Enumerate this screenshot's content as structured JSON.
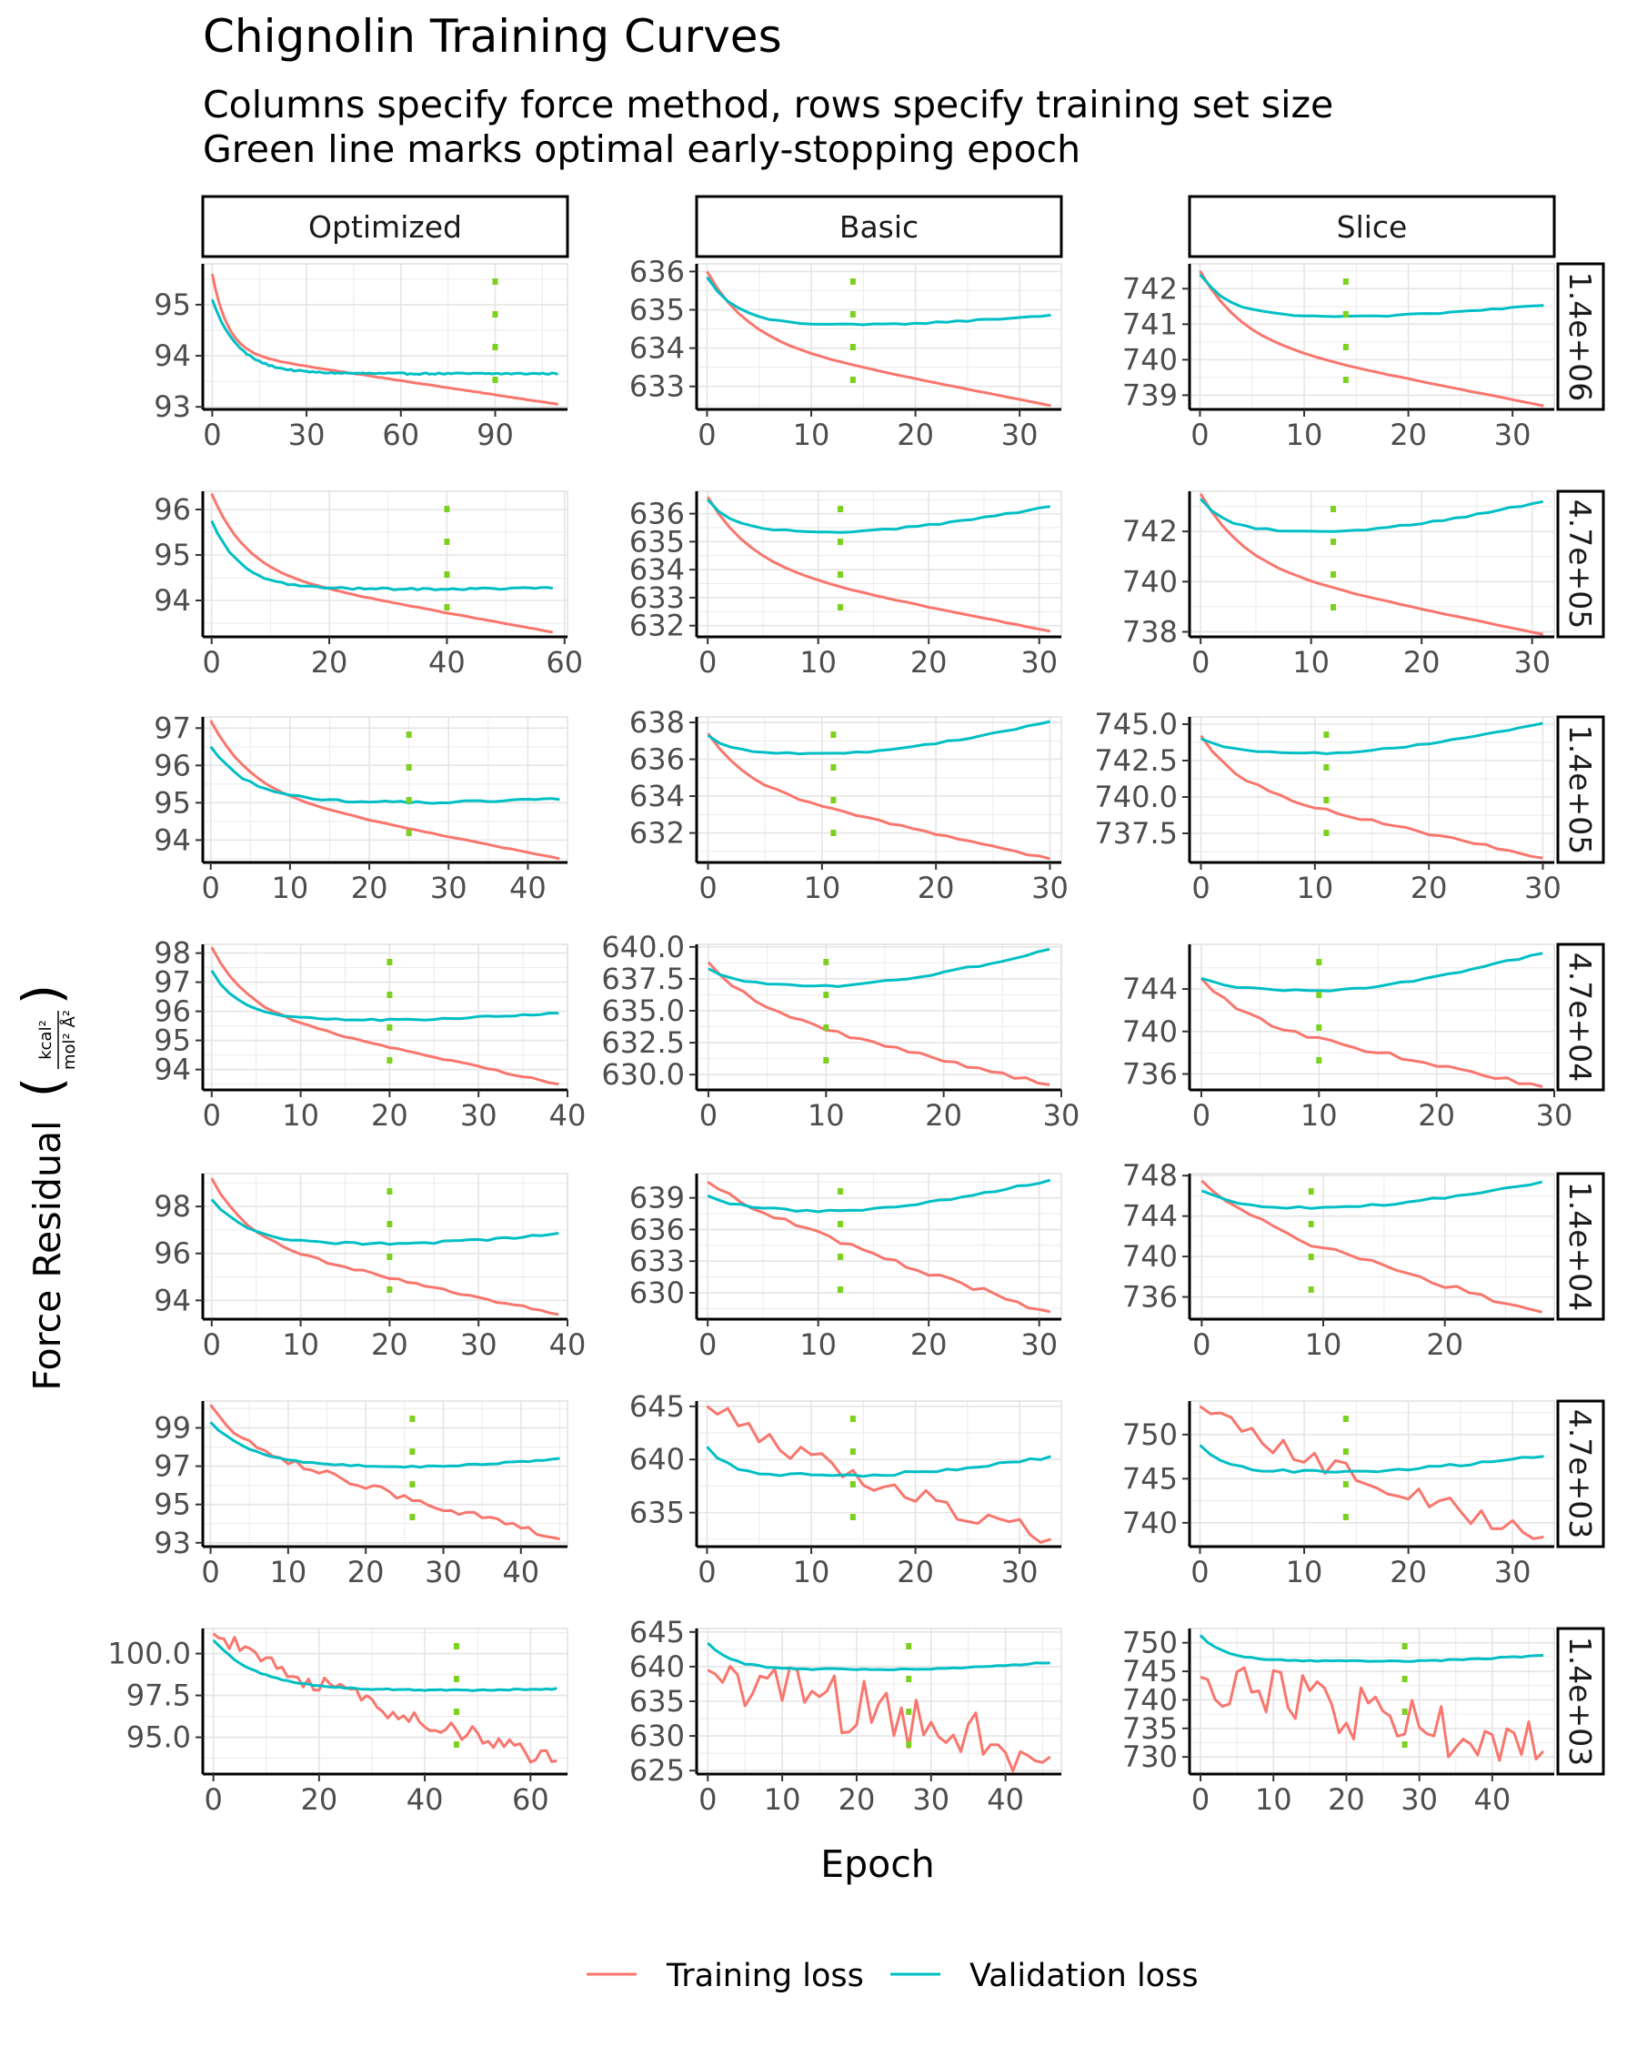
{
  "chart_data": {
    "type": "line",
    "title": "Chignolin Training Curves",
    "subtitle": [
      "Columns specify force method, rows specify training set size",
      "Green line marks optimal early-stopping epoch"
    ],
    "xlabel": "Epoch",
    "ylabel": "Force Residual",
    "ylabel_unit": "kcal²/(mol² Å²)",
    "columns": [
      "Optimized",
      "Basic",
      "Slice"
    ],
    "rows": [
      "1.4e+06",
      "4.7e+05",
      "1.4e+05",
      "4.7e+04",
      "1.4e+04",
      "4.7e+03",
      "1.4e+03"
    ],
    "legend": {
      "position": "bottom",
      "entries": [
        "Training loss",
        "Validation loss"
      ]
    },
    "colors": {
      "training": "#F8766D",
      "validation": "#00BFC4",
      "early_stop": "#7CD11F",
      "grid": "#E5E5E5"
    },
    "panels": [
      {
        "row": "1.4e+06",
        "col": "Optimized",
        "n_epochs": 110,
        "early_stop": 90,
        "xlim": [
          -3,
          113
        ],
        "ylim": [
          92.95,
          95.8
        ],
        "xticks": [
          0,
          30,
          60,
          90
        ],
        "yticks": [
          93,
          94,
          95
        ],
        "train": {
          "start": 95.6,
          "end": 93.05,
          "k": 0.2,
          "noise": 0.004,
          "knee": 0.6
        },
        "val": {
          "start": 95.1,
          "end": 93.65,
          "k": 0.12,
          "rise": 0,
          "noise": 0.015
        }
      },
      {
        "row": "1.4e+06",
        "col": "Basic",
        "n_epochs": 33,
        "early_stop": 14,
        "xlim": [
          -1,
          34
        ],
        "ylim": [
          632.4,
          636.2
        ],
        "xticks": [
          0,
          10,
          20,
          30
        ],
        "yticks": [
          633,
          634,
          635,
          636
        ],
        "train": {
          "start": 636.0,
          "end": 632.5,
          "k": 0.25,
          "noise": 0.005,
          "knee": 0.5
        },
        "val": {
          "start": 635.85,
          "end": 634.6,
          "k": 0.35,
          "rise": 0.26,
          "noise": 0.02
        }
      },
      {
        "row": "1.4e+06",
        "col": "Slice",
        "n_epochs": 33,
        "early_stop": 14,
        "xlim": [
          -1,
          34
        ],
        "ylim": [
          738.6,
          742.7
        ],
        "xticks": [
          0,
          10,
          20,
          30
        ],
        "yticks": [
          739,
          740,
          741,
          742
        ],
        "train": {
          "start": 742.5,
          "end": 738.7,
          "k": 0.25,
          "noise": 0.005,
          "knee": 0.5
        },
        "val": {
          "start": 742.4,
          "end": 741.2,
          "k": 0.35,
          "rise": 0.35,
          "noise": 0.02
        }
      },
      {
        "row": "4.7e+05",
        "col": "Optimized",
        "n_epochs": 58,
        "early_stop": 40,
        "xlim": [
          -1.5,
          60.5
        ],
        "ylim": [
          93.2,
          96.4
        ],
        "xticks": [
          0,
          20,
          40,
          60
        ],
        "yticks": [
          94,
          95,
          96
        ],
        "train": {
          "start": 96.35,
          "end": 93.3,
          "k": 0.17,
          "noise": 0.005,
          "knee": 0.55
        },
        "val": {
          "start": 95.75,
          "end": 94.25,
          "k": 0.2,
          "rise": 0.03,
          "noise": 0.02
        }
      },
      {
        "row": "4.7e+05",
        "col": "Basic",
        "n_epochs": 31,
        "early_stop": 12,
        "xlim": [
          -1,
          32
        ],
        "ylim": [
          631.6,
          636.8
        ],
        "xticks": [
          0,
          10,
          20,
          30
        ],
        "yticks": [
          632,
          633,
          634,
          635,
          636
        ],
        "train": {
          "start": 636.6,
          "end": 631.8,
          "k": 0.25,
          "noise": 0.01,
          "knee": 0.5
        },
        "val": {
          "start": 636.5,
          "end": 635.35,
          "k": 0.45,
          "rise": 0.9,
          "noise": 0.03
        }
      },
      {
        "row": "4.7e+05",
        "col": "Slice",
        "n_epochs": 31,
        "early_stop": 12,
        "xlim": [
          -1,
          32
        ],
        "ylim": [
          737.8,
          743.6
        ],
        "xticks": [
          0,
          10,
          20,
          30
        ],
        "yticks": [
          738,
          740,
          742
        ],
        "train": {
          "start": 743.5,
          "end": 737.9,
          "k": 0.25,
          "noise": 0.01,
          "knee": 0.5
        },
        "val": {
          "start": 743.3,
          "end": 742.0,
          "k": 0.45,
          "rise": 1.2,
          "noise": 0.04
        }
      },
      {
        "row": "1.4e+05",
        "col": "Optimized",
        "n_epochs": 44,
        "early_stop": 25,
        "xlim": [
          -1,
          45
        ],
        "ylim": [
          93.4,
          97.3
        ],
        "xticks": [
          0,
          10,
          20,
          30,
          40
        ],
        "yticks": [
          94,
          95,
          96,
          97
        ],
        "train": {
          "start": 97.2,
          "end": 93.5,
          "k": 0.2,
          "noise": 0.01,
          "knee": 0.5
        },
        "val": {
          "start": 96.5,
          "end": 95.0,
          "k": 0.2,
          "rise": 0.1,
          "noise": 0.03
        }
      },
      {
        "row": "1.4e+05",
        "col": "Basic",
        "n_epochs": 30,
        "early_stop": 11,
        "xlim": [
          -1,
          31
        ],
        "ylim": [
          630.4,
          638.3
        ],
        "xticks": [
          0,
          10,
          20,
          30
        ],
        "yticks": [
          632,
          634,
          636,
          638
        ],
        "train": {
          "start": 637.4,
          "end": 630.6,
          "k": 0.3,
          "noise": 0.06,
          "knee": 0.4
        },
        "val": {
          "start": 637.3,
          "end": 636.3,
          "k": 0.5,
          "rise": 1.75,
          "noise": 0.04
        }
      },
      {
        "row": "1.4e+05",
        "col": "Slice",
        "n_epochs": 30,
        "early_stop": 11,
        "xlim": [
          -1,
          31
        ],
        "ylim": [
          735.5,
          745.5
        ],
        "xticks": [
          0,
          10,
          20,
          30
        ],
        "yticks": [
          737.5,
          740.0,
          742.5,
          745.0
        ],
        "train": {
          "start": 744.2,
          "end": 735.8,
          "k": 0.3,
          "noise": 0.1,
          "knee": 0.4
        },
        "val": {
          "start": 744.0,
          "end": 743.0,
          "k": 0.4,
          "rise": 2.1,
          "noise": 0.05
        }
      },
      {
        "row": "4.7e+04",
        "col": "Optimized",
        "n_epochs": 39,
        "early_stop": 20,
        "xlim": [
          -1,
          40
        ],
        "ylim": [
          93.3,
          98.3
        ],
        "xticks": [
          0,
          10,
          20,
          30,
          40
        ],
        "yticks": [
          94,
          95,
          96,
          97,
          98
        ],
        "train": {
          "start": 98.2,
          "end": 93.5,
          "k": 0.25,
          "noise": 0.03,
          "knee": 0.45
        },
        "val": {
          "start": 97.4,
          "end": 95.7,
          "k": 0.3,
          "rise": 0.25,
          "noise": 0.03
        }
      },
      {
        "row": "4.7e+04",
        "col": "Basic",
        "n_epochs": 29,
        "early_stop": 10,
        "xlim": [
          -1,
          30
        ],
        "ylim": [
          628.8,
          640.2
        ],
        "xticks": [
          0,
          10,
          20,
          30
        ],
        "yticks": [
          630.0,
          632.5,
          635.0,
          637.5,
          640.0
        ],
        "train": {
          "start": 638.8,
          "end": 629.2,
          "k": 0.25,
          "noise": 0.15,
          "knee": 0.35
        },
        "val": {
          "start": 638.3,
          "end": 636.9,
          "k": 0.4,
          "rise": 2.9,
          "noise": 0.08
        }
      },
      {
        "row": "4.7e+04",
        "col": "Slice",
        "n_epochs": 29,
        "early_stop": 10,
        "xlim": [
          -1,
          30
        ],
        "ylim": [
          734.5,
          748.2
        ],
        "xticks": [
          0,
          10,
          20,
          30
        ],
        "yticks": [
          736,
          740,
          744
        ],
        "train": {
          "start": 745.0,
          "end": 734.8,
          "k": 0.3,
          "noise": 0.2,
          "knee": 0.35
        },
        "val": {
          "start": 745.0,
          "end": 743.8,
          "k": 0.4,
          "rise": 3.6,
          "noise": 0.1
        }
      },
      {
        "row": "1.4e+04",
        "col": "Optimized",
        "n_epochs": 39,
        "early_stop": 20,
        "xlim": [
          -1,
          40
        ],
        "ylim": [
          93.2,
          99.4
        ],
        "xticks": [
          0,
          10,
          20,
          30,
          40
        ],
        "yticks": [
          94,
          96,
          98
        ],
        "train": {
          "start": 99.2,
          "end": 93.4,
          "k": 0.25,
          "noise": 0.06,
          "knee": 0.45
        },
        "val": {
          "start": 98.3,
          "end": 96.4,
          "k": 0.25,
          "rise": 0.45,
          "noise": 0.05
        }
      },
      {
        "row": "1.4e+04",
        "col": "Basic",
        "n_epochs": 31,
        "early_stop": 12,
        "xlim": [
          -1,
          32
        ],
        "ylim": [
          627.5,
          641.3
        ],
        "xticks": [
          0,
          10,
          20,
          30
        ],
        "yticks": [
          630,
          633,
          636,
          639
        ],
        "train": {
          "start": 640.5,
          "end": 628.2,
          "k": 0.12,
          "noise": 0.3,
          "knee": 0.2
        },
        "val": {
          "start": 639.2,
          "end": 637.7,
          "k": 0.3,
          "rise": 3.0,
          "noise": 0.12
        }
      },
      {
        "row": "1.4e+04",
        "col": "Slice",
        "n_epochs": 28,
        "early_stop": 9,
        "xlim": [
          -1,
          29
        ],
        "ylim": [
          733.8,
          748.2
        ],
        "xticks": [
          0,
          10,
          20
        ],
        "yticks": [
          736,
          740,
          744,
          748
        ],
        "train": {
          "start": 747.5,
          "end": 734.5,
          "k": 0.2,
          "noise": 0.35,
          "knee": 0.3
        },
        "val": {
          "start": 746.5,
          "end": 744.7,
          "k": 0.35,
          "rise": 2.6,
          "noise": 0.12
        }
      },
      {
        "row": "4.7e+03",
        "col": "Optimized",
        "n_epochs": 45,
        "early_stop": 26,
        "xlim": [
          -1,
          46
        ],
        "ylim": [
          92.8,
          100.4
        ],
        "xticks": [
          0,
          10,
          20,
          30,
          40
        ],
        "yticks": [
          93,
          95,
          97,
          99
        ],
        "train": {
          "start": 100.2,
          "end": 93.2,
          "k": 0.2,
          "noise": 0.2,
          "knee": 0.3
        },
        "val": {
          "start": 99.3,
          "end": 96.95,
          "k": 0.18,
          "rise": 0.45,
          "noise": 0.04
        }
      },
      {
        "row": "4.7e+03",
        "col": "Basic",
        "n_epochs": 33,
        "early_stop": 14,
        "xlim": [
          -1,
          34
        ],
        "ylim": [
          631.8,
          645.5
        ],
        "xticks": [
          0,
          10,
          20,
          30
        ],
        "yticks": [
          635,
          640,
          645
        ],
        "train": {
          "start": 645.0,
          "end": 632.5,
          "k": 0.12,
          "noise": 1.0,
          "knee": 0.2
        },
        "val": {
          "start": 641.2,
          "end": 638.5,
          "k": 0.45,
          "rise": 1.7,
          "noise": 0.15
        }
      },
      {
        "row": "4.7e+03",
        "col": "Slice",
        "n_epochs": 33,
        "early_stop": 14,
        "xlim": [
          -1,
          34
        ],
        "ylim": [
          737.3,
          753.8
        ],
        "xticks": [
          0,
          10,
          20,
          30
        ],
        "yticks": [
          740,
          745,
          750
        ],
        "train": {
          "start": 753.2,
          "end": 738.4,
          "k": 0.12,
          "noise": 1.1,
          "knee": 0.2
        },
        "val": {
          "start": 748.8,
          "end": 745.8,
          "k": 0.45,
          "rise": 1.8,
          "noise": 0.15
        }
      },
      {
        "row": "1.4e+03",
        "col": "Optimized",
        "n_epochs": 65,
        "early_stop": 46,
        "xlim": [
          -2,
          67
        ],
        "ylim": [
          92.8,
          101.5
        ],
        "xticks": [
          0,
          20,
          40,
          60
        ],
        "yticks": [
          95.0,
          97.5,
          100.0
        ],
        "train": {
          "start": 101.2,
          "end": 93.6,
          "k": 0.08,
          "noise": 0.6,
          "knee": 0.2
        },
        "val": {
          "start": 100.8,
          "end": 97.8,
          "k": 0.12,
          "rise": 0.1,
          "noise": 0.04
        }
      },
      {
        "row": "1.4e+03",
        "col": "Basic",
        "n_epochs": 46,
        "early_stop": 27,
        "xlim": [
          -1.5,
          47.5
        ],
        "ylim": [
          624.5,
          645.5
        ],
        "xticks": [
          0,
          10,
          20,
          30,
          40
        ],
        "yticks": [
          625,
          630,
          635,
          640,
          645
        ],
        "train": {
          "start": 639.5,
          "end": 627.0,
          "k": 0.06,
          "noise": 4.5,
          "knee": 0.1
        },
        "val": {
          "start": 643.4,
          "end": 639.6,
          "k": 0.3,
          "rise": 1.0,
          "noise": 0.1
        }
      },
      {
        "row": "1.4e+03",
        "col": "Slice",
        "n_epochs": 47,
        "early_stop": 28,
        "xlim": [
          -1.5,
          48.5
        ],
        "ylim": [
          727,
          752.5
        ],
        "xticks": [
          0,
          10,
          20,
          30,
          40
        ],
        "yticks": [
          730,
          735,
          740,
          745,
          750
        ],
        "train": {
          "start": 744.0,
          "end": 731.0,
          "k": 0.06,
          "noise": 5.0,
          "knee": 0.1
        },
        "val": {
          "start": 751.3,
          "end": 746.8,
          "k": 0.3,
          "rise": 1.0,
          "noise": 0.1
        }
      }
    ]
  }
}
